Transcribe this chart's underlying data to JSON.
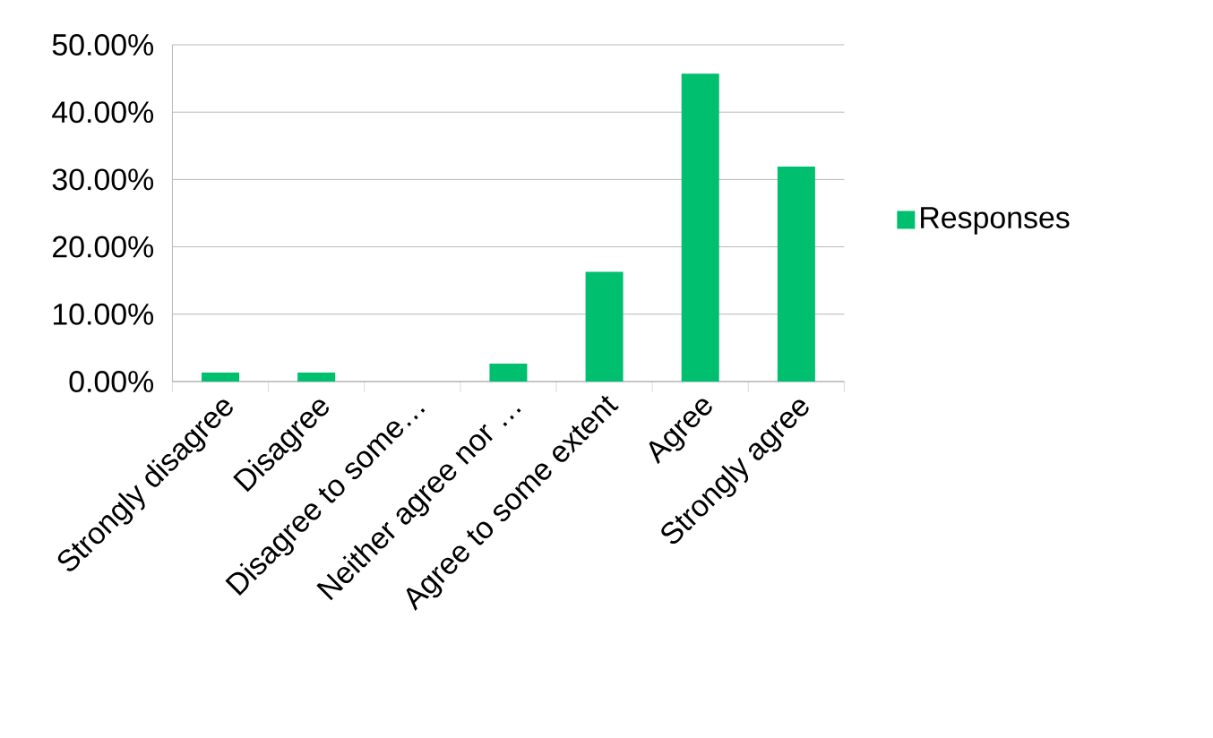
{
  "chart_data": {
    "type": "bar",
    "categories": [
      "Strongly disagree",
      "Disagree",
      "Disagree to some…",
      "Neither agree nor …",
      "Agree to some extent",
      "Agree",
      "Strongly agree"
    ],
    "series": [
      {
        "name": "Responses",
        "color": "#00bf6f",
        "values": [
          1.33,
          1.33,
          0,
          2.65,
          16.3,
          45.7,
          31.9
        ]
      }
    ],
    "ylim": [
      0,
      50
    ],
    "yticks": [
      {
        "value": 0,
        "label": "0.00%"
      },
      {
        "value": 10,
        "label": "10.00%"
      },
      {
        "value": 20,
        "label": "20.00%"
      },
      {
        "value": 30,
        "label": "30.00%"
      },
      {
        "value": 40,
        "label": "40.00%"
      },
      {
        "value": 50,
        "label": "50.00%"
      }
    ],
    "grid": "y",
    "legend": "right"
  }
}
